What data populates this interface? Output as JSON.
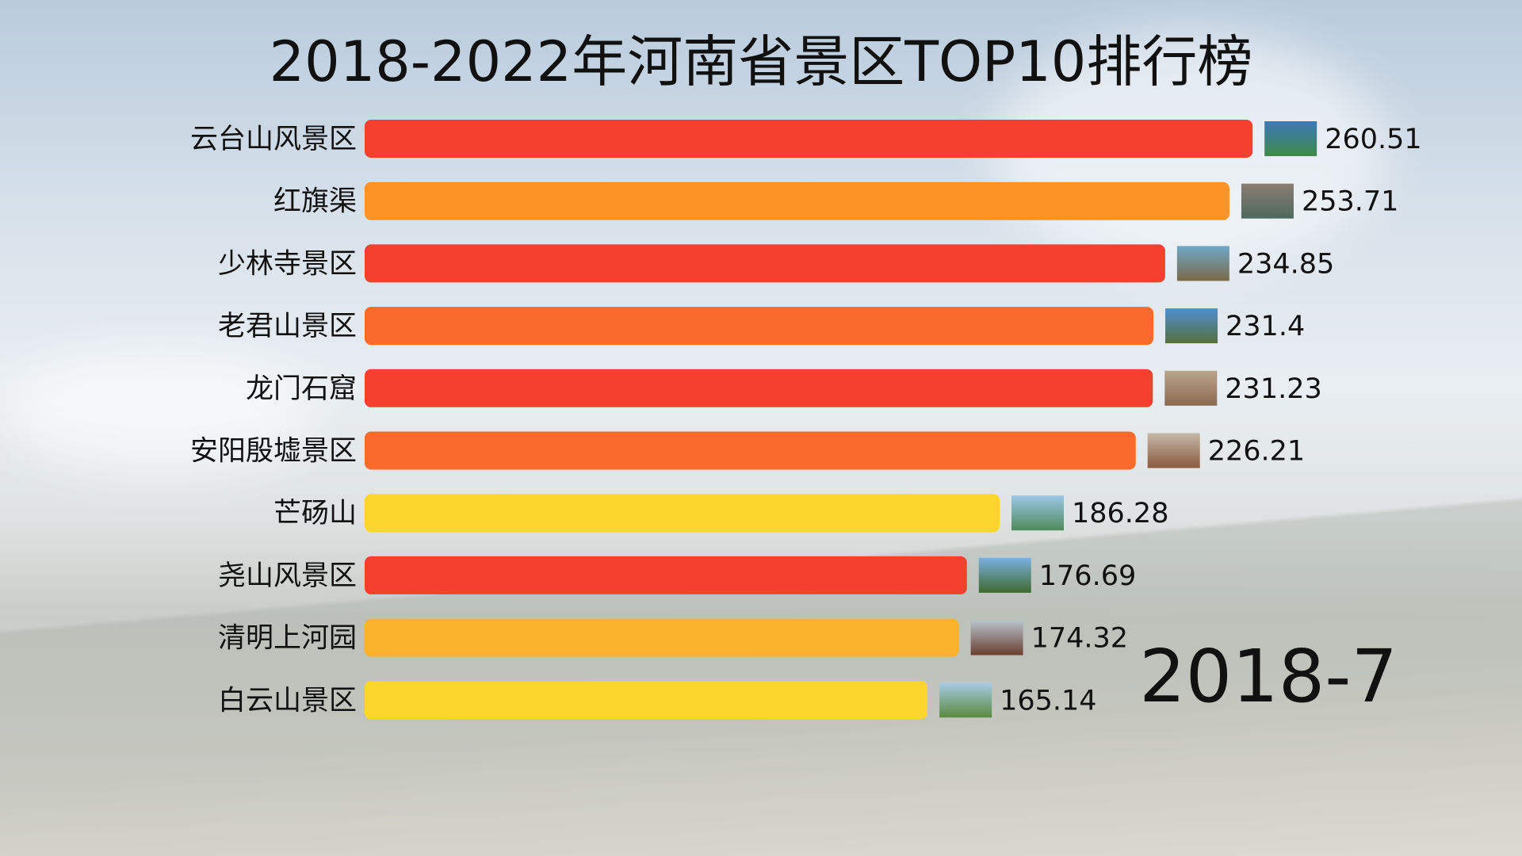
{
  "chart_data": {
    "type": "bar",
    "orientation": "horizontal",
    "title": "2018-2022年河南省景区TOP10排行榜",
    "period": "2018-7",
    "categories": [
      "云台山风景区",
      "红旗渠",
      "少林寺景区",
      "老君山景区",
      "龙门石窟",
      "安阳殷墟景区",
      "芒砀山",
      "尧山风景区",
      "清明上河园",
      "白云山景区"
    ],
    "values": [
      260.51,
      253.71,
      234.85,
      231.4,
      231.23,
      226.21,
      186.28,
      176.69,
      174.32,
      165.14
    ],
    "value_labels": [
      "260.51",
      "253.71",
      "234.85",
      "231.4",
      "231.23",
      "226.21",
      "186.28",
      "176.69",
      "174.32",
      "165.14"
    ],
    "colors": [
      "#f4402f",
      "#fb9327",
      "#f4402f",
      "#fa6a2b",
      "#f4402f",
      "#fa6a2b",
      "#fdd62b",
      "#f4402f",
      "#fcb32c",
      "#fdd62b"
    ],
    "thumb_colors": [
      [
        "#3d78b8",
        "#3f8a4a"
      ],
      [
        "#8a7c72",
        "#4e6a5e"
      ],
      [
        "#6fa7c8",
        "#7a6a48"
      ],
      [
        "#4f8fd0",
        "#56703e"
      ],
      [
        "#b9a48c",
        "#8c6a50"
      ],
      [
        "#c4b8a8",
        "#8a5a3e"
      ],
      [
        "#9cc8e8",
        "#4f8a5a"
      ],
      [
        "#7ab0e0",
        "#3e6a2e"
      ],
      [
        "#b8c4cc",
        "#6a3e30"
      ],
      [
        "#a8cce8",
        "#5a8a3e"
      ]
    ],
    "grid": false,
    "legend": "none",
    "xlim": [
      0,
      300
    ]
  }
}
